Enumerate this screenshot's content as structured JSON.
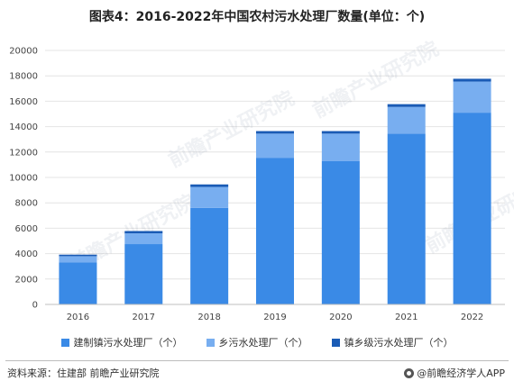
{
  "title": "图表4：2016-2022年中国农村污水处理厂数量(单位：个)",
  "chart_data": {
    "type": "bar",
    "stacked": true,
    "categories": [
      "2016",
      "2017",
      "2018",
      "2019",
      "2020",
      "2021",
      "2022"
    ],
    "series": [
      {
        "name": "建制镇污水处理厂（个）",
        "color": "#3a8ae6",
        "values": [
          3300,
          4750,
          7600,
          11550,
          11300,
          13450,
          15100
        ]
      },
      {
        "name": "乡污水处理厂（个）",
        "color": "#78aef0",
        "values": [
          500,
          850,
          1650,
          1900,
          2150,
          2100,
          2450
        ]
      },
      {
        "name": "镇乡级污水处理厂（个）",
        "color": "#1a5bb5",
        "values": [
          120,
          180,
          200,
          200,
          200,
          220,
          220
        ]
      }
    ],
    "ylim": [
      0,
      20000
    ],
    "yticks": [
      0,
      2000,
      4000,
      6000,
      8000,
      10000,
      12000,
      14000,
      16000,
      18000,
      20000
    ],
    "grid": true,
    "legend_position": "bottom"
  },
  "footer": {
    "source": "资料来源：住建部 前瞻产业研究院",
    "brand": "@前瞻经济学人APP",
    "brand_icon": "qianzhan-logo-icon"
  },
  "watermark": {
    "text": "前瞻产业研究院"
  }
}
